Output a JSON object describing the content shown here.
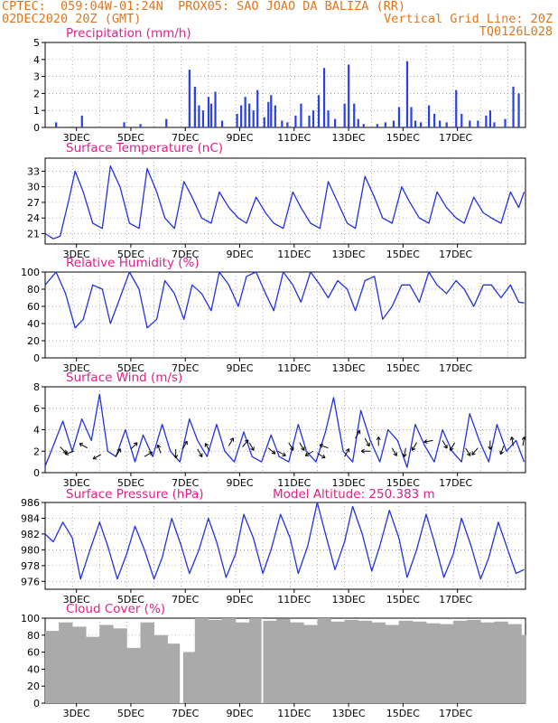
{
  "header": {
    "line1_left": "CPTEC:  059:04W-01:24N  PROX05: SAO JOAO DA BALIZA (RR)",
    "line2_left": "02DEC2020 20Z (GMT)",
    "line2_right": "Vertical Grid Line: 20Z",
    "line3_right": "TQ0126L028"
  },
  "colors": {
    "line": "#2233dd",
    "bar": "#2a40e8",
    "cloud": "#aaaaaa",
    "title": "#e0208a",
    "header": "#e0761c"
  },
  "date_labels": [
    "3DEC",
    "5DEC",
    "7DEC",
    "9DEC",
    "11DEC",
    "13DEC",
    "15DEC",
    "17DEC"
  ],
  "chart_data": [
    {
      "type": "bar",
      "title": "Precipitation (mm/h)",
      "ylim": [
        0,
        5
      ],
      "yticks": [
        "0",
        "1",
        "2",
        "3",
        "4",
        "5"
      ],
      "x_unit": "days since 02DEC2020 20Z",
      "bars": [
        [
          0.4,
          0.3
        ],
        [
          1.35,
          0.7
        ],
        [
          2.9,
          0.3
        ],
        [
          3.5,
          0.2
        ],
        [
          4.45,
          0.5
        ],
        [
          5.3,
          3.4
        ],
        [
          5.5,
          2.4
        ],
        [
          5.65,
          1.3
        ],
        [
          5.8,
          1.0
        ],
        [
          6.0,
          1.8
        ],
        [
          6.1,
          1.4
        ],
        [
          6.25,
          2.1
        ],
        [
          6.5,
          0.4
        ],
        [
          7.05,
          0.8
        ],
        [
          7.2,
          1.3
        ],
        [
          7.35,
          1.8
        ],
        [
          7.5,
          1.4
        ],
        [
          7.65,
          1.0
        ],
        [
          7.8,
          2.2
        ],
        [
          8.05,
          0.6
        ],
        [
          8.2,
          1.5
        ],
        [
          8.3,
          1.9
        ],
        [
          8.45,
          1.3
        ],
        [
          8.7,
          0.4
        ],
        [
          8.9,
          0.3
        ],
        [
          9.2,
          0.7
        ],
        [
          9.4,
          1.4
        ],
        [
          9.7,
          0.7
        ],
        [
          9.85,
          1.0
        ],
        [
          10.05,
          1.9
        ],
        [
          10.25,
          3.5
        ],
        [
          10.4,
          1.0
        ],
        [
          10.65,
          0.5
        ],
        [
          11.0,
          1.4
        ],
        [
          11.15,
          3.7
        ],
        [
          11.35,
          1.4
        ],
        [
          11.5,
          0.5
        ],
        [
          11.7,
          0.2
        ],
        [
          12.2,
          0.2
        ],
        [
          12.5,
          0.3
        ],
        [
          12.8,
          0.4
        ],
        [
          13.0,
          1.2
        ],
        [
          13.3,
          3.9
        ],
        [
          13.45,
          1.2
        ],
        [
          13.6,
          0.4
        ],
        [
          13.8,
          0.3
        ],
        [
          14.1,
          1.3
        ],
        [
          14.3,
          0.8
        ],
        [
          14.5,
          0.4
        ],
        [
          14.75,
          0.3
        ],
        [
          15.1,
          2.2
        ],
        [
          15.3,
          0.8
        ],
        [
          15.6,
          0.4
        ],
        [
          15.9,
          0.4
        ],
        [
          16.2,
          0.7
        ],
        [
          16.35,
          1.0
        ],
        [
          16.5,
          0.3
        ],
        [
          16.9,
          0.5
        ],
        [
          17.2,
          2.4
        ],
        [
          17.4,
          2.0
        ]
      ]
    },
    {
      "type": "line",
      "title": "Surface Temperature (nC)",
      "ylim": [
        19,
        35.5
      ],
      "yticks": [
        21,
        24,
        27,
        30,
        33
      ],
      "x": [
        0,
        0.3,
        0.55,
        0.85,
        1.1,
        1.4,
        1.75,
        2.1,
        2.4,
        2.75,
        3.1,
        3.45,
        3.75,
        4.1,
        4.4,
        4.75,
        5.1,
        5.4,
        5.75,
        6.1,
        6.4,
        6.75,
        7.1,
        7.4,
        7.75,
        8.1,
        8.4,
        8.75,
        9.1,
        9.4,
        9.75,
        10.1,
        10.4,
        10.75,
        11.1,
        11.4,
        11.75,
        12.1,
        12.4,
        12.75,
        13.1,
        13.4,
        13.75,
        14.1,
        14.4,
        14.75,
        15.1,
        15.4,
        15.75,
        16.1,
        16.4,
        16.75,
        17.1,
        17.4,
        17.6
      ],
      "values": [
        21,
        20,
        20.5,
        27,
        33,
        29,
        23,
        22,
        34,
        30,
        23,
        22,
        33.5,
        29,
        24,
        22,
        31,
        28,
        24,
        23,
        29,
        26,
        24,
        23,
        28,
        25,
        23,
        22,
        29,
        26,
        23,
        22,
        31,
        27,
        23,
        22,
        32,
        28,
        24,
        23,
        30,
        27,
        24,
        23,
        29,
        26,
        24,
        23,
        28,
        25,
        24,
        23,
        29,
        26,
        29
      ]
    },
    {
      "type": "line",
      "title": "Relative Humidity (%)",
      "ylim": [
        0,
        100
      ],
      "yticks": [
        0,
        20,
        40,
        60,
        80,
        100
      ],
      "x": [
        0,
        0.4,
        0.75,
        1.1,
        1.4,
        1.75,
        2.1,
        2.4,
        2.75,
        3.1,
        3.45,
        3.75,
        4.1,
        4.4,
        4.75,
        5.1,
        5.4,
        5.75,
        6.1,
        6.4,
        6.75,
        7.1,
        7.4,
        7.75,
        8.1,
        8.4,
        8.75,
        9.1,
        9.4,
        9.75,
        10.1,
        10.4,
        10.75,
        11.1,
        11.4,
        11.75,
        12.1,
        12.4,
        12.75,
        13.1,
        13.4,
        13.75,
        14.1,
        14.4,
        14.75,
        15.1,
        15.4,
        15.75,
        16.1,
        16.4,
        16.75,
        17.1,
        17.4,
        17.6
      ],
      "values": [
        85,
        100,
        75,
        35,
        45,
        85,
        80,
        40,
        70,
        100,
        80,
        35,
        45,
        90,
        75,
        45,
        85,
        75,
        55,
        100,
        85,
        60,
        95,
        100,
        75,
        55,
        100,
        85,
        65,
        100,
        85,
        70,
        90,
        80,
        55,
        90,
        95,
        45,
        60,
        85,
        85,
        65,
        100,
        85,
        75,
        90,
        80,
        60,
        85,
        85,
        70,
        85,
        65,
        64
      ]
    },
    {
      "type": "line",
      "title": "Surface Wind (m/s)",
      "ylim": [
        0,
        8
      ],
      "yticks": [
        0,
        2,
        4,
        6,
        8
      ],
      "x": [
        0,
        0.3,
        0.65,
        1.0,
        1.35,
        1.7,
        2.0,
        2.3,
        2.6,
        2.95,
        3.3,
        3.6,
        3.95,
        4.3,
        4.6,
        4.95,
        5.3,
        5.6,
        5.95,
        6.3,
        6.6,
        6.95,
        7.3,
        7.6,
        7.95,
        8.3,
        8.6,
        8.95,
        9.3,
        9.6,
        9.95,
        10.3,
        10.6,
        10.95,
        11.3,
        11.6,
        11.95,
        12.3,
        12.6,
        12.95,
        13.3,
        13.6,
        13.95,
        14.3,
        14.6,
        14.95,
        15.3,
        15.6,
        15.95,
        16.3,
        16.6,
        16.95,
        17.3,
        17.6
      ],
      "values": [
        0.6,
        2.5,
        4.8,
        2,
        5,
        3,
        7.3,
        2,
        1.5,
        4,
        1,
        3.5,
        1.5,
        4.5,
        2,
        1,
        5,
        3,
        1.5,
        4.5,
        2,
        1,
        3.8,
        1.5,
        1,
        3.5,
        1.5,
        1,
        4.5,
        2,
        1,
        3.8,
        7,
        2,
        1,
        5.8,
        3,
        1,
        4,
        3,
        0.5,
        4.5,
        2.5,
        1,
        4,
        2,
        1,
        5.5,
        3,
        1,
        4.5,
        2,
        3,
        1
      ],
      "arrows": [
        [
          0.55,
          2.4,
          315
        ],
        [
          1.05,
          2,
          200
        ],
        [
          1.55,
          2.3,
          150
        ],
        [
          2.05,
          1.7,
          210
        ],
        [
          2.6,
          1.5,
          60
        ],
        [
          3.15,
          2.2,
          45
        ],
        [
          3.65,
          1.5,
          30
        ],
        [
          4.25,
          1.8,
          110
        ],
        [
          4.8,
          2.2,
          270
        ],
        [
          5.05,
          2.2,
          60
        ],
        [
          5.6,
          2.2,
          300
        ],
        [
          6.05,
          2,
          120
        ],
        [
          6.75,
          2.5,
          60
        ],
        [
          7.25,
          2.4,
          50
        ],
        [
          7.5,
          2.8,
          300
        ],
        [
          8.2,
          2.3,
          320
        ],
        [
          8.55,
          2,
          330
        ],
        [
          8.95,
          2.8,
          300
        ],
        [
          9.35,
          2.8,
          300
        ],
        [
          9.85,
          2,
          210
        ],
        [
          10.0,
          1.8,
          330
        ],
        [
          10.4,
          2.3,
          160
        ],
        [
          11.0,
          1.5,
          60
        ],
        [
          11.4,
          3.2,
          60
        ],
        [
          11.75,
          3.2,
          300
        ],
        [
          11.95,
          2,
          180
        ],
        [
          12.25,
          2.5,
          90
        ],
        [
          12.75,
          2.3,
          300
        ],
        [
          13.25,
          2.3,
          260
        ],
        [
          13.65,
          2.8,
          240
        ],
        [
          14.25,
          3.0,
          190
        ],
        [
          14.6,
          3.0,
          300
        ],
        [
          15.05,
          2.8,
          240
        ],
        [
          15.45,
          2.3,
          300
        ],
        [
          15.9,
          2.3,
          230
        ],
        [
          16.35,
          3.0,
          270
        ],
        [
          16.85,
          2.5,
          250
        ],
        [
          17.2,
          2.5,
          100
        ],
        [
          17.55,
          2.5,
          80
        ]
      ]
    },
    {
      "type": "line",
      "title": "Surface Pressure (hPa)",
      "subtitle": "Model Altitude: 250.383 m",
      "ylim": [
        975,
        986
      ],
      "yticks": [
        976,
        978,
        980,
        982,
        984,
        986
      ],
      "x": [
        0,
        0.3,
        0.65,
        1.0,
        1.3,
        1.65,
        2.0,
        2.3,
        2.65,
        3.0,
        3.3,
        3.65,
        4.0,
        4.3,
        4.65,
        5.0,
        5.3,
        5.65,
        6.0,
        6.3,
        6.65,
        7.0,
        7.3,
        7.65,
        8.0,
        8.3,
        8.65,
        9.0,
        9.3,
        9.65,
        10.0,
        10.3,
        10.65,
        11.0,
        11.3,
        11.65,
        12.0,
        12.3,
        12.65,
        13.0,
        13.3,
        13.65,
        14.0,
        14.3,
        14.65,
        15.0,
        15.3,
        15.65,
        16.0,
        16.3,
        16.65,
        17.0,
        17.3,
        17.6
      ],
      "values": [
        982,
        981,
        983.5,
        981.5,
        976.3,
        980,
        983.5,
        980.5,
        976.3,
        979.5,
        983,
        980,
        976.3,
        979,
        984,
        980.5,
        977,
        980,
        984,
        981,
        976.5,
        979.5,
        984.5,
        981.5,
        977,
        980,
        984.5,
        981.5,
        977,
        980.5,
        986,
        982,
        977.5,
        981,
        985.5,
        982,
        977.3,
        980.5,
        985,
        981.5,
        976.5,
        980,
        984.5,
        981,
        976.5,
        979.5,
        984,
        980.5,
        976.3,
        979,
        983.5,
        980,
        977,
        977.5
      ]
    },
    {
      "type": "bar",
      "title": "Cloud Cover (%)",
      "ylim": [
        0,
        100
      ],
      "yticks": [
        0,
        20,
        40,
        60,
        80,
        100
      ],
      "gap_after": [
        [
          4.95,
          0.12
        ],
        [
          7.95,
          0.06
        ]
      ],
      "x": [
        0.0,
        0.5,
        1.0,
        1.5,
        2.0,
        2.5,
        3.0,
        3.5,
        4.0,
        4.5,
        5.0,
        5.5,
        6.0,
        6.5,
        7.0,
        7.5,
        8.0,
        8.5,
        9.0,
        9.5,
        10.0,
        10.5,
        11.0,
        11.5,
        12.0,
        12.5,
        13.0,
        13.5,
        14.0,
        14.5,
        15.0,
        15.5,
        16.0,
        16.5,
        17.0,
        17.5
      ],
      "values": [
        85,
        95,
        90,
        78,
        92,
        88,
        65,
        95,
        80,
        70,
        60,
        100,
        98,
        100,
        95,
        100,
        97,
        99,
        95,
        92,
        100,
        96,
        98,
        97,
        95,
        92,
        97,
        96,
        94,
        93,
        97,
        98,
        95,
        96,
        93,
        80
      ]
    }
  ]
}
